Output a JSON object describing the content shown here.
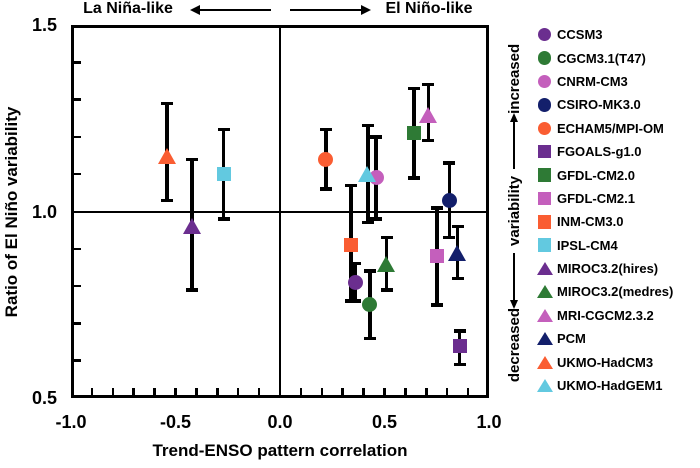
{
  "chart_data": {
    "type": "scatter",
    "title": "",
    "xlabel": "Trend-ENSO pattern correlation",
    "ylabel": "Ratio of El Niño variability",
    "xlim": [
      -1.0,
      1.0
    ],
    "ylim": [
      0.5,
      1.5
    ],
    "x_tick_values": [
      -1.0,
      -0.5,
      0.0,
      0.5,
      1.0
    ],
    "x_tick_labels": [
      "-1.0",
      "-0.5",
      "0.0",
      "0.5",
      "1.0"
    ],
    "y_tick_values": [
      0.5,
      1.0,
      1.5
    ],
    "y_tick_labels": [
      "0.5",
      "1.0",
      "1.5"
    ],
    "minor_tick_step": 0.1,
    "grid": false,
    "legend_position": "right",
    "reference_lines": {
      "vertical_x": 0.0,
      "horizontal_y": 1.0
    },
    "annotations": {
      "top_left": "La Niña-like",
      "top_right": "El Niño-like",
      "right_top": "increased",
      "right_middle": "variability",
      "right_bottom": "decreased"
    },
    "series_colors": {
      "purple": "#6B2E8F",
      "green": "#2E7A35",
      "orchid": "#C45FBC",
      "navy": "#131F6B",
      "orange": "#FA5D32",
      "cyan": "#62C9E0"
    },
    "points": [
      {
        "label": "CCSM3",
        "marker": "circle",
        "color_key": "purple",
        "x": 0.36,
        "y": 0.81,
        "err_lo": 0.76,
        "err_hi": 0.86
      },
      {
        "label": "CGCM3.1(T47)",
        "marker": "circle",
        "color_key": "green",
        "x": 0.43,
        "y": 0.75,
        "err_lo": 0.66,
        "err_hi": 0.84
      },
      {
        "label": "CNRM-CM3",
        "marker": "circle",
        "color_key": "orchid",
        "x": 0.46,
        "y": 1.09,
        "err_lo": 0.98,
        "err_hi": 1.2
      },
      {
        "label": "CSIRO-MK3.0",
        "marker": "circle",
        "color_key": "navy",
        "x": 0.81,
        "y": 1.03,
        "err_lo": 0.93,
        "err_hi": 1.13
      },
      {
        "label": "ECHAM5/MPI-OM",
        "marker": "circle",
        "color_key": "orange",
        "x": 0.22,
        "y": 1.14,
        "err_lo": 1.06,
        "err_hi": 1.22
      },
      {
        "label": "FGOALS-g1.0",
        "marker": "square",
        "color_key": "purple",
        "x": 0.86,
        "y": 0.64,
        "err_lo": 0.59,
        "err_hi": 0.68
      },
      {
        "label": "GFDL-CM2.0",
        "marker": "square",
        "color_key": "green",
        "x": 0.64,
        "y": 1.21,
        "err_lo": 1.09,
        "err_hi": 1.33
      },
      {
        "label": "GFDL-CM2.1",
        "marker": "square",
        "color_key": "orchid",
        "x": 0.75,
        "y": 0.88,
        "err_lo": 0.75,
        "err_hi": 1.01
      },
      {
        "label": "INM-CM3.0",
        "marker": "square",
        "color_key": "orange",
        "x": 0.34,
        "y": 0.91,
        "err_lo": 0.76,
        "err_hi": 1.07
      },
      {
        "label": "IPSL-CM4",
        "marker": "square",
        "color_key": "cyan",
        "x": -0.27,
        "y": 1.1,
        "err_lo": 0.98,
        "err_hi": 1.22
      },
      {
        "label": "MIROC3.2(hires)",
        "marker": "triangle",
        "color_key": "purple",
        "x": -0.42,
        "y": 0.96,
        "err_lo": 0.79,
        "err_hi": 1.14
      },
      {
        "label": "MIROC3.2(medres)",
        "marker": "triangle",
        "color_key": "green",
        "x": 0.51,
        "y": 0.86,
        "err_lo": 0.79,
        "err_hi": 0.93
      },
      {
        "label": "MRI-CGCM2.3.2",
        "marker": "triangle",
        "color_key": "orchid",
        "x": 0.71,
        "y": 1.26,
        "err_lo": 1.19,
        "err_hi": 1.34
      },
      {
        "label": "PCM",
        "marker": "triangle",
        "color_key": "navy",
        "x": 0.85,
        "y": 0.89,
        "err_lo": 0.82,
        "err_hi": 0.96
      },
      {
        "label": "UKMO-HadCM3",
        "marker": "triangle",
        "color_key": "orange",
        "x": -0.54,
        "y": 1.15,
        "err_lo": 1.03,
        "err_hi": 1.29
      },
      {
        "label": "UKMO-HadGEM1",
        "marker": "triangle",
        "color_key": "cyan",
        "x": 0.42,
        "y": 1.1,
        "err_lo": 0.97,
        "err_hi": 1.23
      }
    ]
  }
}
